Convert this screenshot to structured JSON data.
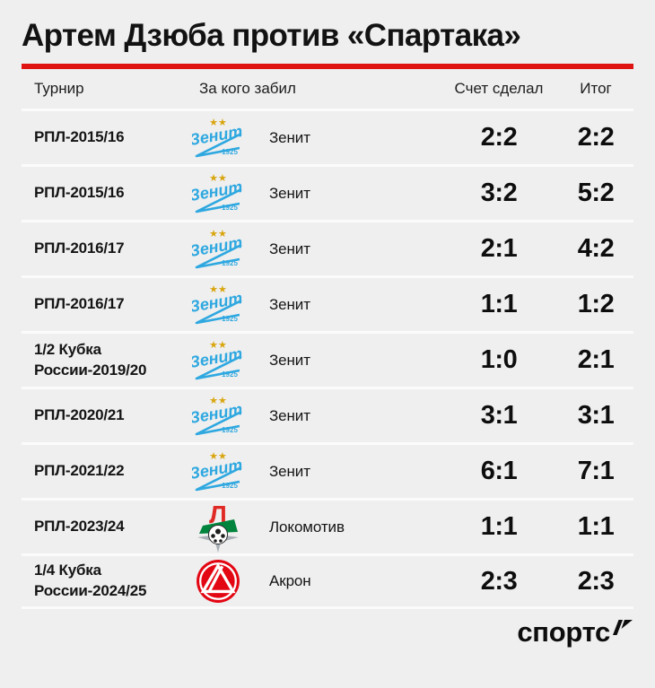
{
  "title": "Артем Дзюба против «Спартака»",
  "colors": {
    "background": "#efefef",
    "accent_red": "#e01313",
    "row_separator": "#fbfbfb",
    "text": "#141414",
    "zenit_blue": "#2fa8e0",
    "zenit_gold": "#d9a50f",
    "lokomotiv_red": "#e02a25",
    "lokomotiv_green": "#00843d",
    "akron_red": "#e30613"
  },
  "table": {
    "headers": [
      "Турнир",
      "За кого забил",
      "Счет сделал",
      "Итог"
    ],
    "rows": [
      {
        "tournament": "РПЛ-2015/16",
        "logo": "zenit-logo",
        "team": "Зенит",
        "score_made": "2:2",
        "result": "2:2"
      },
      {
        "tournament": "РПЛ-2015/16",
        "logo": "zenit-logo",
        "team": "Зенит",
        "score_made": "3:2",
        "result": "5:2"
      },
      {
        "tournament": "РПЛ-2016/17",
        "logo": "zenit-logo",
        "team": "Зенит",
        "score_made": "2:1",
        "result": "4:2"
      },
      {
        "tournament": "РПЛ-2016/17",
        "logo": "zenit-logo",
        "team": "Зенит",
        "score_made": "1:1",
        "result": "1:2"
      },
      {
        "tournament": "1/2 Кубка\nРоссии-2019/20",
        "logo": "zenit-logo",
        "team": "Зенит",
        "score_made": "1:0",
        "result": "2:1"
      },
      {
        "tournament": "РПЛ-2020/21",
        "logo": "zenit-logo",
        "team": "Зенит",
        "score_made": "3:1",
        "result": "3:1"
      },
      {
        "tournament": "РПЛ-2021/22",
        "logo": "zenit-logo",
        "team": "Зенит",
        "score_made": "6:1",
        "result": "7:1"
      },
      {
        "tournament": "РПЛ-2023/24",
        "logo": "lokomotiv-logo",
        "team": "Локомотив",
        "score_made": "1:1",
        "result": "1:1"
      },
      {
        "tournament": "1/4 Кубка\nРоссии-2024/25",
        "logo": "akron-logo",
        "team": "Акрон",
        "score_made": "2:3",
        "result": "2:3"
      }
    ]
  },
  "footer": {
    "brand": "спортс"
  },
  "chart_data": {
    "type": "table",
    "title": "Артем Дзюба против «Спартака»",
    "columns": [
      "Турнир",
      "За кого забил",
      "Счет сделал",
      "Итог"
    ],
    "rows": [
      [
        "РПЛ-2015/16",
        "Зенит",
        "2:2",
        "2:2"
      ],
      [
        "РПЛ-2015/16",
        "Зенит",
        "3:2",
        "5:2"
      ],
      [
        "РПЛ-2016/17",
        "Зенит",
        "2:1",
        "4:2"
      ],
      [
        "РПЛ-2016/17",
        "Зенит",
        "1:1",
        "1:2"
      ],
      [
        "1/2 Кубка России-2019/20",
        "Зенит",
        "1:0",
        "2:1"
      ],
      [
        "РПЛ-2020/21",
        "Зенит",
        "3:1",
        "3:1"
      ],
      [
        "РПЛ-2021/22",
        "Зенит",
        "6:1",
        "7:1"
      ],
      [
        "РПЛ-2023/24",
        "Локомотив",
        "1:1",
        "1:1"
      ],
      [
        "1/4 Кубка России-2024/25",
        "Акрон",
        "2:3",
        "2:3"
      ]
    ]
  }
}
